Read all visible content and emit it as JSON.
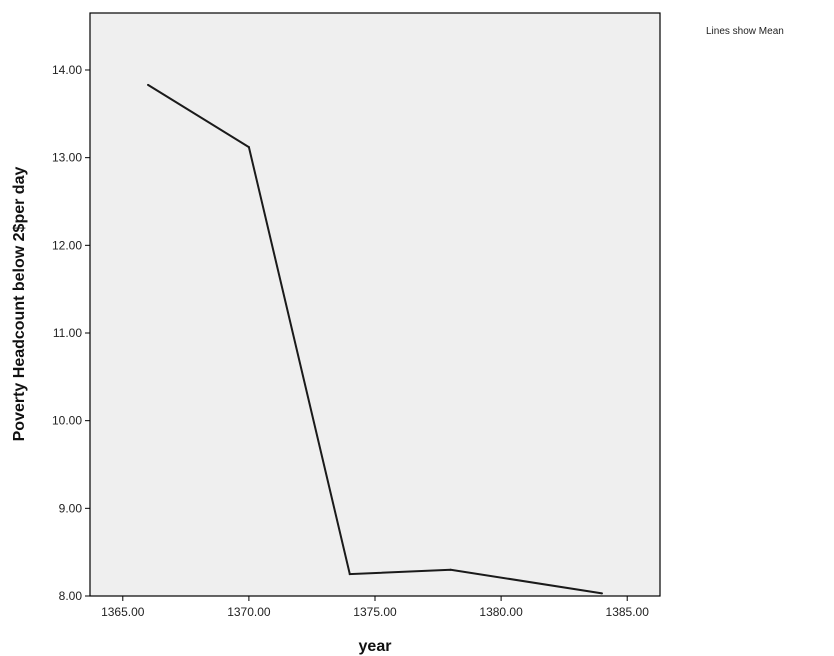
{
  "chart_data": {
    "type": "line",
    "xlabel": "year",
    "ylabel": "Poverty Headcount below 2$per day",
    "note": "Lines show Mean",
    "xlim": [
      1363.7,
      1386.3
    ],
    "ylim": [
      8.0,
      14.65
    ],
    "x_ticks": [
      1365,
      1370,
      1375,
      1380,
      1385
    ],
    "x_tick_labels": [
      "1365.00",
      "1370.00",
      "1375.00",
      "1380.00",
      "1385.00"
    ],
    "y_ticks": [
      8,
      9,
      10,
      11,
      12,
      13,
      14
    ],
    "y_tick_labels": [
      "8.00",
      "9.00",
      "10.00",
      "11.00",
      "12.00",
      "13.00",
      "14.00"
    ],
    "grid": false,
    "series": [
      {
        "x": [
          1366,
          1370,
          1374,
          1378,
          1384
        ],
        "values": [
          13.83,
          13.12,
          8.25,
          8.3,
          8.03
        ]
      }
    ],
    "colors": {
      "plot_background": "#efefef",
      "line": "#1a1a1a",
      "frame": "#000000"
    }
  }
}
